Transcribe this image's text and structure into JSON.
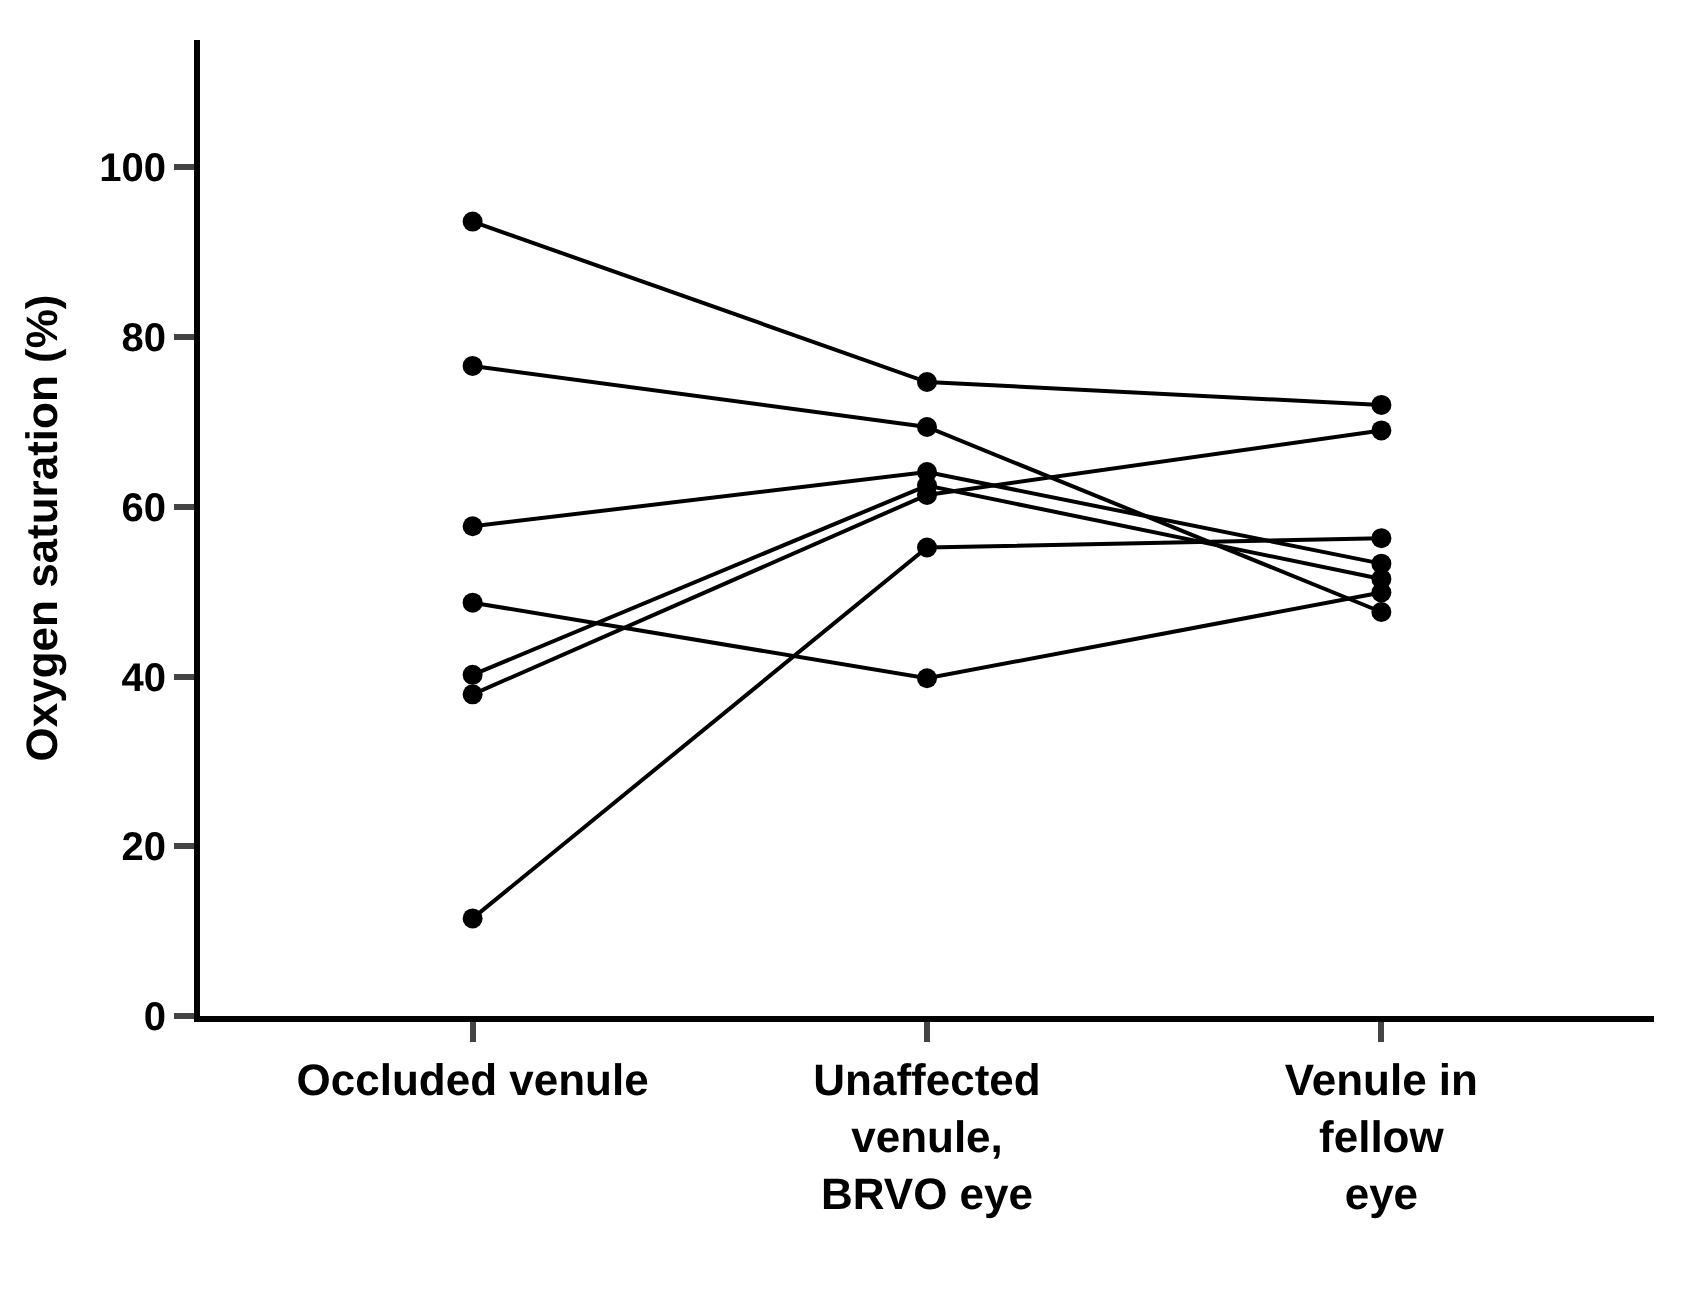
{
  "chart_data": {
    "type": "line",
    "ylabel": "Oxygen saturation (%)",
    "categories": [
      "Occluded venule",
      "Unaffected venule, BRVO eye",
      "Venule in fellow eye"
    ],
    "series": [
      {
        "color": "#000000",
        "values": [
          93.6,
          74.7,
          72.0
        ]
      },
      {
        "color": "#000000",
        "values": [
          76.6,
          69.4,
          47.6
        ]
      },
      {
        "color": "#000000",
        "values": [
          57.7,
          64.1,
          53.3
        ]
      },
      {
        "color": "#000000",
        "values": [
          40.2,
          62.5,
          51.5
        ]
      },
      {
        "color": "#000000",
        "values": [
          37.9,
          61.4,
          69.0
        ]
      },
      {
        "color": "#000000",
        "values": [
          11.5,
          55.2,
          56.3
        ]
      },
      {
        "color": "#000000",
        "values": [
          48.7,
          39.8,
          49.9
        ]
      }
    ],
    "ylim": [
      0,
      115
    ],
    "yticks": [
      0,
      20,
      40,
      60,
      80,
      100
    ],
    "marker": "circle",
    "line_style": "solid"
  }
}
